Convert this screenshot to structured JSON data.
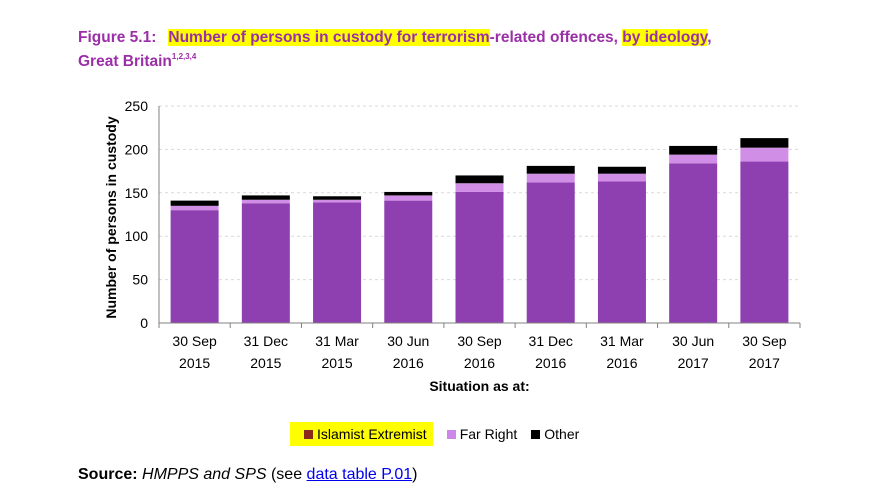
{
  "figure_label": "Figure 5.1:",
  "title_part1": "Number of persons in custody for terrorism",
  "title_part2": "-related offences, ",
  "title_part3": "by ideology",
  "title_part4": ",",
  "title_line2": "Great Britain",
  "title_superscript": "1,2,3,4",
  "highlight_color": "#ffff00",
  "title_color": "#9b2fa8",
  "source": {
    "label": "Source:",
    "text": "HMPPS and SPS",
    "see": " (see ",
    "link": "data table P.01",
    "close": ")"
  },
  "chart_data": {
    "type": "bar",
    "stacked": true,
    "title": "Number of persons in custody for terrorism-related offences, by ideology, Great Britain",
    "xlabel": "Situation as at:",
    "ylabel": "Number of persons in custody",
    "ylim": [
      0,
      250
    ],
    "yticks": [
      0,
      50,
      100,
      150,
      200,
      250
    ],
    "grid": true,
    "legend_position": "bottom",
    "categories": [
      [
        "30 Sep",
        "2015"
      ],
      [
        "31 Dec",
        "2015"
      ],
      [
        "31 Mar",
        "2015"
      ],
      [
        "30 Jun",
        "2016"
      ],
      [
        "30 Sep",
        "2016"
      ],
      [
        "31 Dec",
        "2016"
      ],
      [
        "31 Mar",
        "2016"
      ],
      [
        "30 Jun",
        "2017"
      ],
      [
        "30 Sep",
        "2017"
      ]
    ],
    "series": [
      {
        "name": "Islamist Extremist",
        "color": "#8e3fb0",
        "swatch": "#8b2a1a",
        "values": [
          130,
          138,
          139,
          141,
          151,
          162,
          163,
          184,
          186
        ]
      },
      {
        "name": "Far Right",
        "color": "#d18ee6",
        "swatch": "#cc88e8",
        "values": [
          5,
          4,
          3,
          6,
          10,
          10,
          9,
          10,
          16
        ]
      },
      {
        "name": "Other",
        "color": "#000000",
        "swatch": "#000000",
        "values": [
          6,
          5,
          4,
          4,
          9,
          9,
          8,
          10,
          11
        ]
      }
    ]
  }
}
